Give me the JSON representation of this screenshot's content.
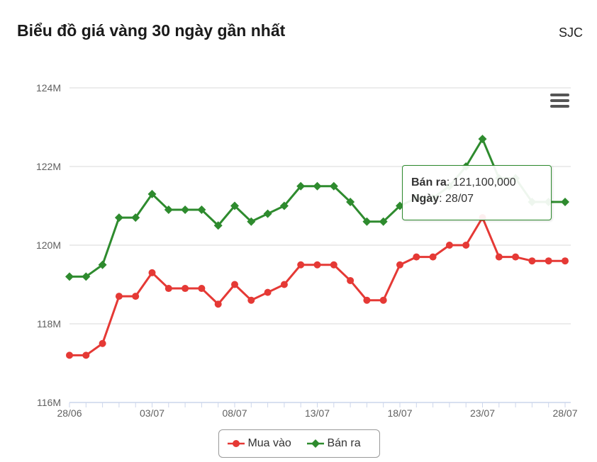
{
  "header": {
    "title": "Biểu đồ giá vàng 30 ngày gần nhất",
    "brand": "SJC"
  },
  "menu": {
    "icon": "hamburger-menu-icon"
  },
  "tooltip": {
    "series_label": "Bán ra",
    "series_value": "121,100,000",
    "date_label": "Ngày",
    "date_value": "28/07"
  },
  "chart_data": {
    "type": "line",
    "x": [
      "28/06",
      "29/06",
      "30/06",
      "01/07",
      "02/07",
      "03/07",
      "04/07",
      "05/07",
      "06/07",
      "07/07",
      "08/07",
      "09/07",
      "10/07",
      "11/07",
      "12/07",
      "13/07",
      "14/07",
      "15/07",
      "16/07",
      "17/07",
      "18/07",
      "19/07",
      "20/07",
      "21/07",
      "22/07",
      "23/07",
      "24/07",
      "25/07",
      "26/07",
      "27/07",
      "28/07"
    ],
    "xticks": [
      "28/06",
      "03/07",
      "08/07",
      "13/07",
      "18/07",
      "23/07",
      "28/07"
    ],
    "yticks": [
      116000000,
      118000000,
      120000000,
      122000000,
      124000000
    ],
    "ytick_labels": [
      "116M",
      "118M",
      "120M",
      "122M",
      "124M"
    ],
    "ylim": [
      116000000,
      124000000
    ],
    "grid": true,
    "legend_position": "bottom-center",
    "series": [
      {
        "name": "Mua vào",
        "color": "#e53935",
        "marker": "circle",
        "values": [
          117200000,
          117200000,
          117500000,
          118700000,
          118700000,
          119300000,
          118900000,
          118900000,
          118900000,
          118500000,
          119000000,
          118600000,
          118800000,
          119000000,
          119500000,
          119500000,
          119500000,
          119100000,
          118600000,
          118600000,
          119500000,
          119700000,
          119700000,
          120000000,
          120000000,
          120700000,
          119700000,
          119700000,
          119600000,
          119600000,
          119600000
        ]
      },
      {
        "name": "Bán ra",
        "color": "#2e8b2e",
        "marker": "diamond",
        "values": [
          119200000,
          119200000,
          119500000,
          120700000,
          120700000,
          121300000,
          120900000,
          120900000,
          120900000,
          120500000,
          121000000,
          120600000,
          120800000,
          121000000,
          121500000,
          121500000,
          121500000,
          121100000,
          120600000,
          120600000,
          121000000,
          121200000,
          121200000,
          121500000,
          122000000,
          122700000,
          121700000,
          121700000,
          121100000,
          121100000,
          121100000
        ]
      }
    ]
  }
}
